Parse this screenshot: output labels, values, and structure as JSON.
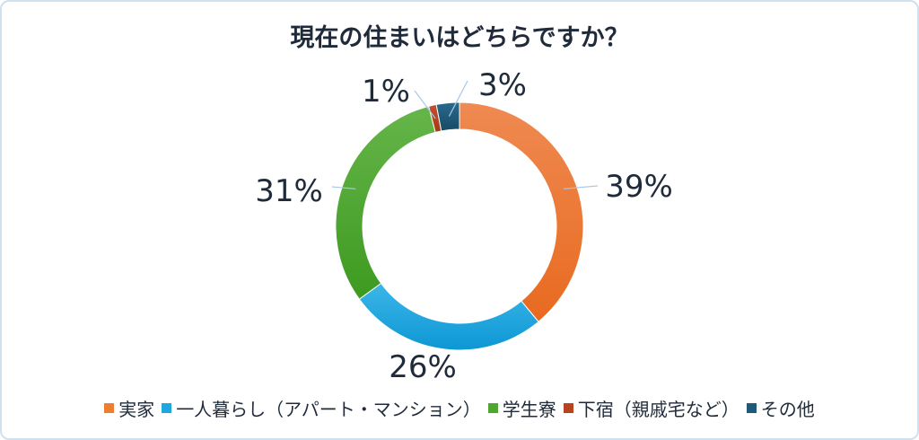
{
  "chart_data": {
    "type": "pie",
    "title": "現在の住まいはどちらですか？",
    "categories": [
      "実家",
      "一人暮らし（アパート・マンション）",
      "学生寮",
      "下宿（親戚宅など）",
      "その他"
    ],
    "values": [
      39,
      26,
      31,
      1,
      3
    ],
    "labels": [
      "39%",
      "26%",
      "31%",
      "1%",
      "3%"
    ],
    "colors": [
      "#ed7d31",
      "#1fa8df",
      "#4ea72e",
      "#b8431f",
      "#1f5a7a"
    ],
    "legend_position": "bottom",
    "style": "donut"
  }
}
